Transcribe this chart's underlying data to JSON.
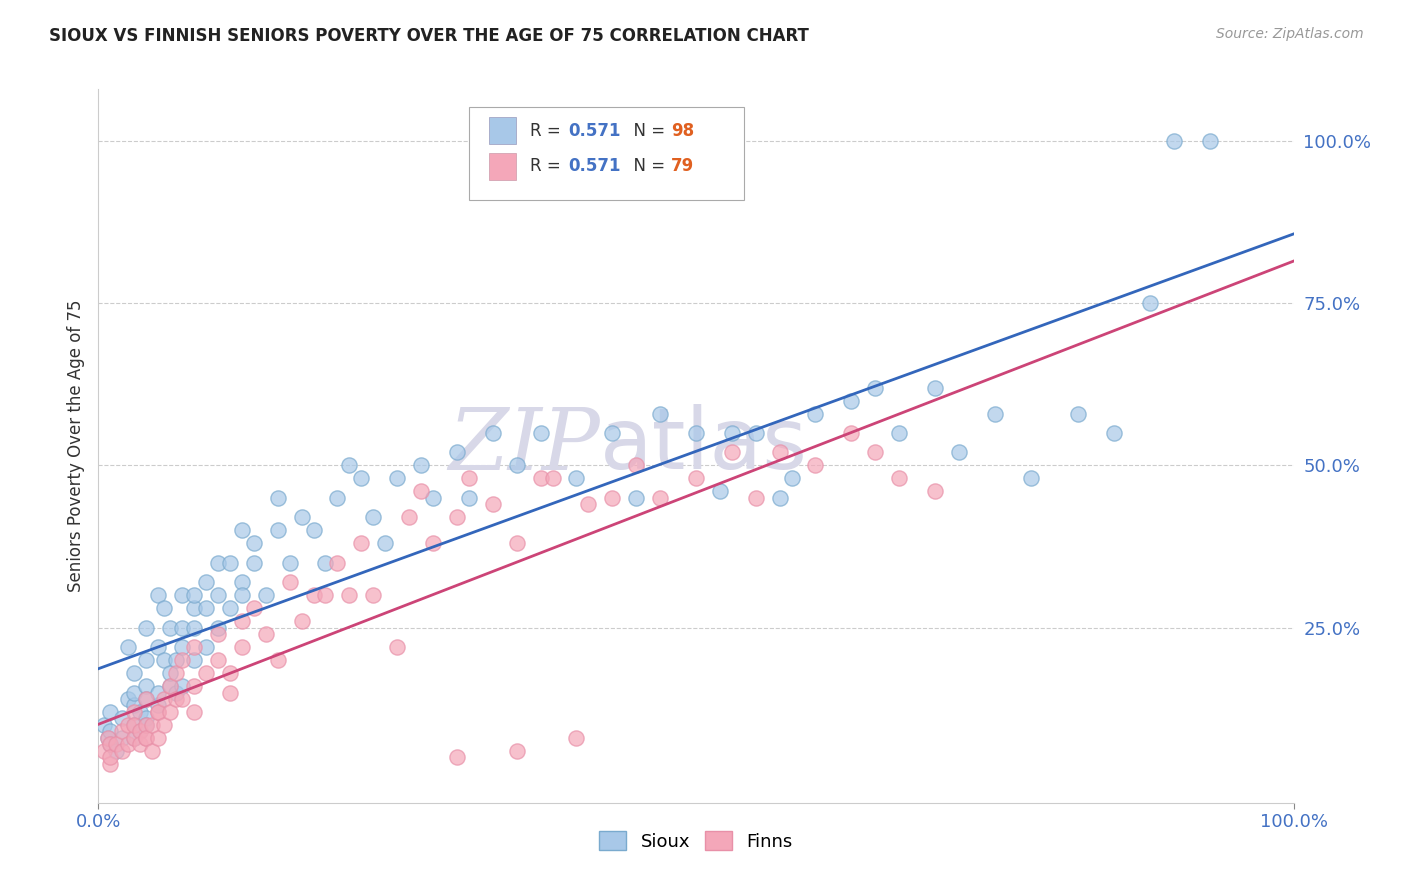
{
  "title": "SIOUX VS FINNISH SENIORS POVERTY OVER THE AGE OF 75 CORRELATION CHART",
  "source": "Source: ZipAtlas.com",
  "ylabel": "Seniors Poverty Over the Age of 75",
  "xlim": [
    0.0,
    1.0
  ],
  "ylim": [
    -0.02,
    1.08
  ],
  "ytick_labels": [
    "25.0%",
    "50.0%",
    "75.0%",
    "100.0%"
  ],
  "ytick_positions": [
    0.25,
    0.5,
    0.75,
    1.0
  ],
  "ytick_color": "#4472c4",
  "xtick_labels_left": "0.0%",
  "xtick_labels_right": "100.0%",
  "xtick_color": "#4472c4",
  "sioux_color": "#a8c8e8",
  "finns_color": "#f4a7b9",
  "sioux_edge_color": "#7aaace",
  "finns_edge_color": "#e890a8",
  "sioux_line_color": "#3366bb",
  "finns_line_color": "#cc4477",
  "watermark_text": "ZIPatlas",
  "watermark_color": "#d8d8e8",
  "background_color": "#ffffff",
  "grid_color": "#cccccc",
  "legend_R_color": "#4472c4",
  "legend_N_color": "#e06020",
  "sioux_R": "0.571",
  "sioux_N": "98",
  "finns_R": "0.571",
  "finns_N": "79",
  "sioux_points": [
    [
      0.005,
      0.1
    ],
    [
      0.008,
      0.08
    ],
    [
      0.01,
      0.09
    ],
    [
      0.01,
      0.12
    ],
    [
      0.01,
      0.07
    ],
    [
      0.015,
      0.06
    ],
    [
      0.02,
      0.08
    ],
    [
      0.02,
      0.11
    ],
    [
      0.025,
      0.14
    ],
    [
      0.025,
      0.22
    ],
    [
      0.03,
      0.1
    ],
    [
      0.03,
      0.13
    ],
    [
      0.03,
      0.15
    ],
    [
      0.03,
      0.18
    ],
    [
      0.03,
      0.08
    ],
    [
      0.035,
      0.09
    ],
    [
      0.035,
      0.12
    ],
    [
      0.04,
      0.16
    ],
    [
      0.04,
      0.11
    ],
    [
      0.04,
      0.1
    ],
    [
      0.04,
      0.14
    ],
    [
      0.04,
      0.2
    ],
    [
      0.04,
      0.25
    ],
    [
      0.05,
      0.13
    ],
    [
      0.05,
      0.22
    ],
    [
      0.05,
      0.15
    ],
    [
      0.05,
      0.3
    ],
    [
      0.055,
      0.2
    ],
    [
      0.055,
      0.28
    ],
    [
      0.06,
      0.16
    ],
    [
      0.06,
      0.25
    ],
    [
      0.06,
      0.18
    ],
    [
      0.065,
      0.15
    ],
    [
      0.065,
      0.2
    ],
    [
      0.07,
      0.25
    ],
    [
      0.07,
      0.3
    ],
    [
      0.07,
      0.22
    ],
    [
      0.07,
      0.16
    ],
    [
      0.08,
      0.28
    ],
    [
      0.08,
      0.25
    ],
    [
      0.08,
      0.3
    ],
    [
      0.08,
      0.2
    ],
    [
      0.09,
      0.22
    ],
    [
      0.09,
      0.32
    ],
    [
      0.09,
      0.28
    ],
    [
      0.1,
      0.35
    ],
    [
      0.1,
      0.25
    ],
    [
      0.1,
      0.3
    ],
    [
      0.11,
      0.28
    ],
    [
      0.11,
      0.35
    ],
    [
      0.12,
      0.32
    ],
    [
      0.12,
      0.4
    ],
    [
      0.12,
      0.3
    ],
    [
      0.13,
      0.38
    ],
    [
      0.13,
      0.35
    ],
    [
      0.14,
      0.3
    ],
    [
      0.15,
      0.4
    ],
    [
      0.15,
      0.45
    ],
    [
      0.16,
      0.35
    ],
    [
      0.17,
      0.42
    ],
    [
      0.18,
      0.4
    ],
    [
      0.19,
      0.35
    ],
    [
      0.2,
      0.45
    ],
    [
      0.21,
      0.5
    ],
    [
      0.22,
      0.48
    ],
    [
      0.23,
      0.42
    ],
    [
      0.24,
      0.38
    ],
    [
      0.25,
      0.48
    ],
    [
      0.27,
      0.5
    ],
    [
      0.28,
      0.45
    ],
    [
      0.3,
      0.52
    ],
    [
      0.31,
      0.45
    ],
    [
      0.33,
      0.55
    ],
    [
      0.35,
      0.5
    ],
    [
      0.37,
      0.55
    ],
    [
      0.4,
      0.48
    ],
    [
      0.43,
      0.55
    ],
    [
      0.45,
      0.45
    ],
    [
      0.47,
      0.58
    ],
    [
      0.5,
      0.55
    ],
    [
      0.53,
      0.55
    ],
    [
      0.55,
      0.55
    ],
    [
      0.57,
      0.45
    ],
    [
      0.58,
      0.48
    ],
    [
      0.6,
      0.58
    ],
    [
      0.63,
      0.6
    ],
    [
      0.65,
      0.62
    ],
    [
      0.67,
      0.55
    ],
    [
      0.7,
      0.62
    ],
    [
      0.72,
      0.52
    ],
    [
      0.75,
      0.58
    ],
    [
      0.78,
      0.48
    ],
    [
      0.82,
      0.58
    ],
    [
      0.85,
      0.55
    ],
    [
      0.88,
      0.75
    ],
    [
      0.9,
      1.0
    ],
    [
      0.93,
      1.0
    ],
    [
      0.52,
      0.46
    ]
  ],
  "finns_points": [
    [
      0.005,
      0.06
    ],
    [
      0.008,
      0.08
    ],
    [
      0.01,
      0.04
    ],
    [
      0.01,
      0.07
    ],
    [
      0.01,
      0.05
    ],
    [
      0.015,
      0.07
    ],
    [
      0.02,
      0.09
    ],
    [
      0.02,
      0.06
    ],
    [
      0.025,
      0.07
    ],
    [
      0.025,
      0.1
    ],
    [
      0.03,
      0.12
    ],
    [
      0.03,
      0.08
    ],
    [
      0.03,
      0.1
    ],
    [
      0.035,
      0.09
    ],
    [
      0.035,
      0.07
    ],
    [
      0.04,
      0.08
    ],
    [
      0.04,
      0.14
    ],
    [
      0.04,
      0.1
    ],
    [
      0.04,
      0.08
    ],
    [
      0.045,
      0.06
    ],
    [
      0.045,
      0.1
    ],
    [
      0.05,
      0.12
    ],
    [
      0.05,
      0.08
    ],
    [
      0.05,
      0.12
    ],
    [
      0.055,
      0.1
    ],
    [
      0.055,
      0.14
    ],
    [
      0.06,
      0.12
    ],
    [
      0.06,
      0.16
    ],
    [
      0.065,
      0.14
    ],
    [
      0.065,
      0.18
    ],
    [
      0.07,
      0.14
    ],
    [
      0.07,
      0.2
    ],
    [
      0.08,
      0.16
    ],
    [
      0.08,
      0.12
    ],
    [
      0.08,
      0.22
    ],
    [
      0.09,
      0.18
    ],
    [
      0.1,
      0.2
    ],
    [
      0.1,
      0.24
    ],
    [
      0.11,
      0.18
    ],
    [
      0.11,
      0.15
    ],
    [
      0.12,
      0.26
    ],
    [
      0.12,
      0.22
    ],
    [
      0.13,
      0.28
    ],
    [
      0.14,
      0.24
    ],
    [
      0.15,
      0.2
    ],
    [
      0.16,
      0.32
    ],
    [
      0.17,
      0.26
    ],
    [
      0.18,
      0.3
    ],
    [
      0.19,
      0.3
    ],
    [
      0.2,
      0.35
    ],
    [
      0.21,
      0.3
    ],
    [
      0.22,
      0.38
    ],
    [
      0.23,
      0.3
    ],
    [
      0.25,
      0.22
    ],
    [
      0.26,
      0.42
    ],
    [
      0.27,
      0.46
    ],
    [
      0.28,
      0.38
    ],
    [
      0.3,
      0.42
    ],
    [
      0.3,
      0.05
    ],
    [
      0.31,
      0.48
    ],
    [
      0.33,
      0.44
    ],
    [
      0.35,
      0.38
    ],
    [
      0.35,
      0.06
    ],
    [
      0.37,
      0.48
    ],
    [
      0.38,
      0.48
    ],
    [
      0.4,
      0.08
    ],
    [
      0.41,
      0.44
    ],
    [
      0.43,
      0.45
    ],
    [
      0.45,
      0.5
    ],
    [
      0.47,
      0.45
    ],
    [
      0.5,
      0.48
    ],
    [
      0.53,
      0.52
    ],
    [
      0.55,
      0.45
    ],
    [
      0.57,
      0.52
    ],
    [
      0.6,
      0.5
    ],
    [
      0.63,
      0.55
    ],
    [
      0.65,
      0.52
    ],
    [
      0.67,
      0.48
    ],
    [
      0.7,
      0.46
    ]
  ]
}
